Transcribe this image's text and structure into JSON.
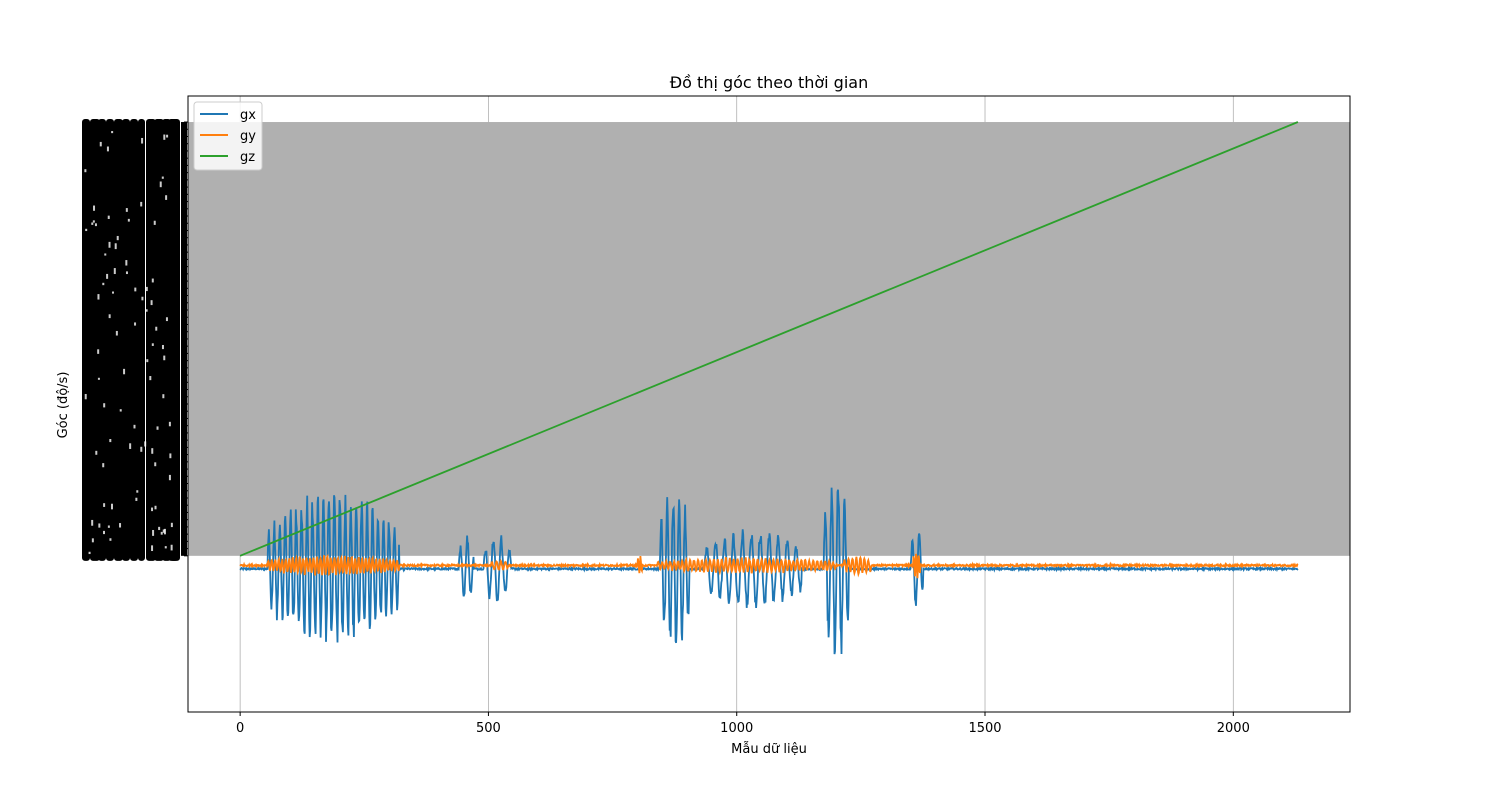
{
  "chart_data": {
    "type": "line",
    "title": "Đồ thị góc theo thời gian",
    "xlabel": "Mẫu dữ liệu",
    "ylabel": "Góc (độ/s)",
    "xlim": [
      -105,
      2235
    ],
    "ylim": [
      -0.36,
      1.06
    ],
    "x_ticks": [
      0,
      500,
      1000,
      1500,
      2000
    ],
    "x_tick_labels": [
      "0",
      "500",
      "1000",
      "1500",
      "2000"
    ],
    "grid": true,
    "legend_position": "top-left",
    "y_tick_labels_note": "unreadable overlapping labels",
    "band": {
      "ymin": 0.0,
      "ymax": 1.0,
      "color": "#b0b0b0"
    },
    "n_samples": 2131,
    "series": [
      {
        "name": "gx",
        "color": "#1f77b4",
        "baseline": -0.03,
        "bursts": [
          {
            "start": 55,
            "end": 320,
            "amp": 0.155,
            "period": 11
          },
          {
            "start": 440,
            "end": 470,
            "amp": 0.07,
            "period": 14
          },
          {
            "start": 490,
            "end": 545,
            "amp": 0.07,
            "period": 16
          },
          {
            "start": 845,
            "end": 905,
            "amp": 0.17,
            "period": 12
          },
          {
            "start": 935,
            "end": 1130,
            "amp": 0.08,
            "period": 18
          },
          {
            "start": 1175,
            "end": 1225,
            "amp": 0.19,
            "period": 13
          },
          {
            "start": 1350,
            "end": 1375,
            "amp": 0.08,
            "period": 14
          }
        ]
      },
      {
        "name": "gy",
        "color": "#ff7f0e",
        "baseline": -0.022,
        "bursts": [
          {
            "start": 55,
            "end": 320,
            "amp": 0.02,
            "period": 7
          },
          {
            "start": 505,
            "end": 540,
            "amp": 0.01,
            "period": 9
          },
          {
            "start": 800,
            "end": 810,
            "amp": 0.02,
            "period": 5
          },
          {
            "start": 840,
            "end": 1200,
            "amp": 0.015,
            "period": 8
          },
          {
            "start": 1215,
            "end": 1270,
            "amp": 0.02,
            "period": 8
          },
          {
            "start": 1355,
            "end": 1370,
            "amp": 0.03,
            "period": 5
          }
        ]
      },
      {
        "name": "gz",
        "color": "#2ca02c",
        "start_value": 0.0,
        "end_value": 1.0
      }
    ]
  }
}
